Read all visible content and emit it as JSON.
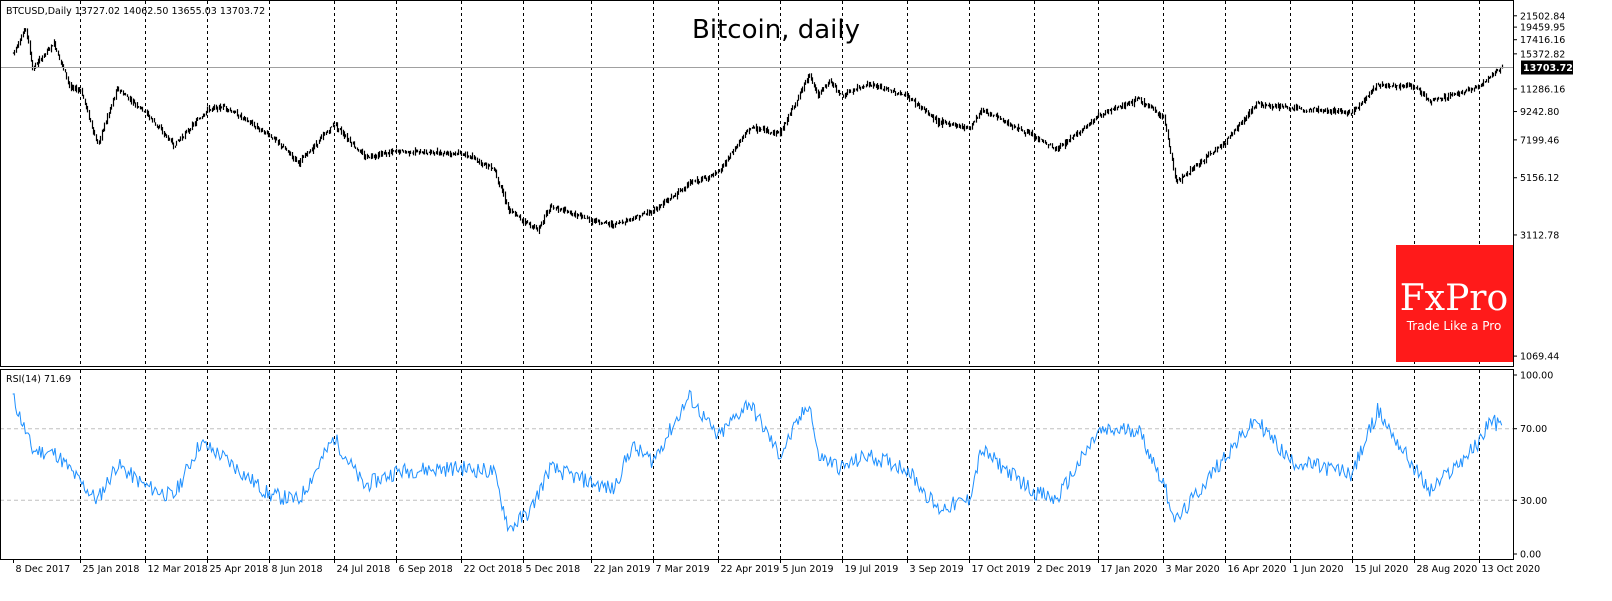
{
  "chart_data": [
    {
      "type": "bar",
      "subtype": "ohlc",
      "title": "Bitcoin, daily",
      "symbol_info": "BTCUSD,Daily  13727.02 14062.50 13655.03 13703.72",
      "y_scale": "log",
      "ylim": [
        980,
        24500
      ],
      "y_ticks": [
        "21502.84",
        "19459.95",
        "17416.16",
        "15372.82",
        "13703.72",
        "11286.16",
        "9242.80",
        "7199.46",
        "5156.12",
        "3112.78",
        "1069.44"
      ],
      "last_price": "13703.72",
      "x_labels": [
        "8 Dec 2017",
        "25 Jan 2018",
        "12 Mar 2018",
        "25 Apr 2018",
        "8 Jun 2018",
        "24 Jul 2018",
        "6 Sep 2018",
        "22 Oct 2018",
        "5 Dec 2018",
        "22 Jan 2019",
        "7 Mar 2019",
        "22 Apr 2019",
        "5 Jun 2019",
        "19 Jul 2019",
        "3 Sep 2019",
        "17 Oct 2019",
        "2 Dec 2019",
        "17 Jan 2020",
        "3 Mar 2020",
        "16 Apr 2020",
        "1 Jun 2020",
        "15 Jul 2020",
        "28 Aug 2020",
        "13 Oct 2020"
      ],
      "series": [
        {
          "name": "",
          "price_path": [
            [
              "8 Dec 2017",
              15500
            ],
            [
              "17 Dec 2017",
              19300
            ],
            [
              "22 Dec 2017",
              13500
            ],
            [
              "6 Jan 2018",
              16900
            ],
            [
              "18 Jan 2018",
              11300
            ],
            [
              "25 Jan 2018",
              11200
            ],
            [
              "6 Feb 2018",
              6900
            ],
            [
              "20 Feb 2018",
              11300
            ],
            [
              "12 Mar 2018",
              9200
            ],
            [
              "1 Apr 2018",
              6850
            ],
            [
              "25 Apr 2018",
              9400
            ],
            [
              "7 May 2018",
              9650
            ],
            [
              "8 Jun 2018",
              7500
            ],
            [
              "29 Jun 2018",
              5900
            ],
            [
              "24 Jul 2018",
              8300
            ],
            [
              "14 Aug 2018",
              6200
            ],
            [
              "6 Sep 2018",
              6500
            ],
            [
              "22 Oct 2018",
              6400
            ],
            [
              "14 Nov 2018",
              5600
            ],
            [
              "25 Nov 2018",
              3850
            ],
            [
              "15 Dec 2018",
              3250
            ],
            [
              "24 Dec 2018",
              4000
            ],
            [
              "22 Jan 2019",
              3550
            ],
            [
              "7 Feb 2019",
              3400
            ],
            [
              "7 Mar 2019",
              3850
            ],
            [
              "2 Apr 2019",
              4900
            ],
            [
              "22 Apr 2019",
              5350
            ],
            [
              "14 May 2019",
              8000
            ],
            [
              "5 Jun 2019",
              7650
            ],
            [
              "26 Jun 2019",
              12900
            ],
            [
              "2 Jul 2019",
              10600
            ],
            [
              "10 Jul 2019",
              12100
            ],
            [
              "19 Jul 2019",
              10600
            ],
            [
              "6 Aug 2019",
              11800
            ],
            [
              "3 Sep 2019",
              10600
            ],
            [
              "25 Sep 2019",
              8450
            ],
            [
              "17 Oct 2019",
              8000
            ],
            [
              "26 Oct 2019",
              9400
            ],
            [
              "2 Dec 2019",
              7400
            ],
            [
              "18 Dec 2019",
              6600
            ],
            [
              "17 Jan 2020",
              8900
            ],
            [
              "14 Feb 2020",
              10300
            ],
            [
              "3 Mar 2020",
              8800
            ],
            [
              "12 Mar 2020",
              4950
            ],
            [
              "16 Apr 2020",
              7100
            ],
            [
              "8 May 2020",
              9900
            ],
            [
              "1 Jun 2020",
              9500
            ],
            [
              "15 Jul 2020",
              9200
            ],
            [
              "2 Aug 2020",
              11700
            ],
            [
              "28 Aug 2020",
              11500
            ],
            [
              "8 Sep 2020",
              10100
            ],
            [
              "13 Oct 2020",
              11500
            ],
            [
              "29 Oct 2020",
              13703.72
            ]
          ]
        }
      ]
    },
    {
      "type": "line",
      "title": "RSI(14) 71.69",
      "ylim": [
        0,
        100
      ],
      "y_ticks": [
        "100.00",
        "70.00",
        "30.00",
        "0.00"
      ],
      "levels": [
        70,
        30
      ],
      "colors": {
        "line": "#1e90ff",
        "level": "#c0c0c0"
      },
      "series": [
        {
          "name": "RSI(14)",
          "values": [
            [
              "8 Dec 2017",
              88
            ],
            [
              "22 Dec 2017",
              58
            ],
            [
              "8 Jan 2018",
              56
            ],
            [
              "25 Jan 2018",
              40
            ],
            [
              "6 Feb 2018",
              30
            ],
            [
              "20 Feb 2018",
              50
            ],
            [
              "12 Mar 2018",
              38
            ],
            [
              "1 Apr 2018",
              32
            ],
            [
              "20 Apr 2018",
              62
            ],
            [
              "5 May 2018",
              55
            ],
            [
              "8 Jun 2018",
              33
            ],
            [
              "29 Jun 2018",
              30
            ],
            [
              "24 Jul 2018",
              65
            ],
            [
              "14 Aug 2018",
              38
            ],
            [
              "6 Sep 2018",
              46
            ],
            [
              "20 Sep 2018",
              47
            ],
            [
              "22 Oct 2018",
              48
            ],
            [
              "14 Nov 2018",
              46
            ],
            [
              "25 Nov 2018",
              14
            ],
            [
              "10 Dec 2018",
              24
            ],
            [
              "24 Dec 2018",
              48
            ],
            [
              "22 Jan 2019",
              40
            ],
            [
              "7 Feb 2019",
              36
            ],
            [
              "20 Feb 2019",
              60
            ],
            [
              "7 Mar 2019",
              52
            ],
            [
              "2 Apr 2019",
              88
            ],
            [
              "22 Apr 2019",
              65
            ],
            [
              "14 May 2019",
              85
            ],
            [
              "5 Jun 2019",
              55
            ],
            [
              "26 Jun 2019",
              85
            ],
            [
              "2 Jul 2019",
              55
            ],
            [
              "19 Jul 2019",
              48
            ],
            [
              "6 Aug 2019",
              55
            ],
            [
              "3 Sep 2019",
              48
            ],
            [
              "25 Sep 2019",
              25
            ],
            [
              "17 Oct 2019",
              30
            ],
            [
              "26 Oct 2019",
              58
            ],
            [
              "2 Dec 2019",
              35
            ],
            [
              "18 Dec 2019",
              30
            ],
            [
              "17 Jan 2020",
              68
            ],
            [
              "14 Feb 2020",
              70
            ],
            [
              "3 Mar 2020",
              40
            ],
            [
              "12 Mar 2020",
              18
            ],
            [
              "16 Apr 2020",
              55
            ],
            [
              "8 May 2020",
              75
            ],
            [
              "1 Jun 2020",
              52
            ],
            [
              "15 Jul 2020",
              45
            ],
            [
              "2 Aug 2020",
              80
            ],
            [
              "28 Aug 2020",
              48
            ],
            [
              "8 Sep 2020",
              35
            ],
            [
              "13 Oct 2020",
              62
            ],
            [
              "20 Oct 2020",
              75
            ],
            [
              "29 Oct 2020",
              71.69
            ]
          ]
        }
      ]
    }
  ],
  "logo": {
    "name": "FxPro",
    "tagline": "Trade Like a Pro",
    "color": "#ff1a1a"
  }
}
